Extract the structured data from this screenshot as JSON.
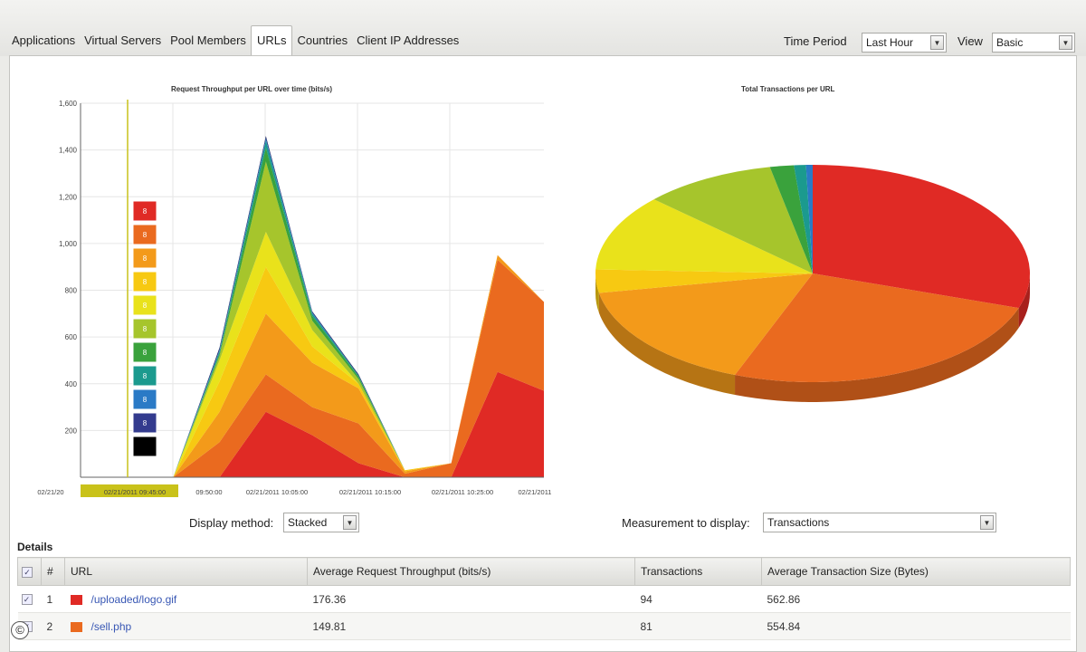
{
  "tabs": [
    "Applications",
    "Virtual Servers",
    "Pool Members",
    "URLs",
    "Countries",
    "Client IP Addresses"
  ],
  "active_tab": 3,
  "toolbar": {
    "time_period_label": "Time Period",
    "time_period_value": "Last Hour",
    "view_label": "View",
    "view_value": "Basic"
  },
  "charts": {
    "left_title": "Request Throughput per URL over time (bits/s)",
    "right_title": "Total Transactions per URL"
  },
  "controls": {
    "display_method_label": "Display method",
    "display_method_value": "Stacked",
    "measurement_label": "Measurement to display",
    "measurement_value": "Transactions"
  },
  "details_label": "Details",
  "table": {
    "headers": [
      "#",
      "URL",
      "Average Request Throughput (bits/s)",
      "Transactions",
      "Average Transaction Size (Bytes)"
    ],
    "rows": [
      {
        "num": "1",
        "color": "#e02a25",
        "url": "/uploaded/logo.gif",
        "throughput": "176.36",
        "transactions": "94",
        "size": "562.86"
      },
      {
        "num": "2",
        "color": "#ea6a1f",
        "url": "/sell.php",
        "throughput": "149.81",
        "transactions": "81",
        "size": "554.84"
      }
    ]
  },
  "legend_labels": [
    "8",
    "8",
    "8",
    "8",
    "8",
    "8",
    "8",
    "8",
    "8",
    "8"
  ],
  "legend_colors": [
    "#e02a25",
    "#ea6a1f",
    "#f39a1a",
    "#f7c912",
    "#e9e21b",
    "#a6c52c",
    "#3aa23c",
    "#1b9a8e",
    "#2a7ac6",
    "#333b8e",
    "#000000"
  ],
  "copyright_symbol": "©",
  "chart_data": [
    {
      "type": "area",
      "title": "Request Throughput per URL over time (bits/s)",
      "stacked": true,
      "ylim": [
        0,
        1600
      ],
      "yticks": [
        "1,600",
        "1,400",
        "1,200",
        "1,000",
        "800",
        "600",
        "400",
        "200"
      ],
      "xtick_labels": [
        "02/21/20",
        "02/21/2011 09:45:00",
        "09:50:00",
        "02/21/2011 10:05:00",
        "02/21/2011 10:15:00",
        "02/21/2011 10:25:00",
        "02/21/2011"
      ],
      "x": [
        0,
        1,
        2,
        3,
        4,
        5,
        6,
        7,
        8,
        9,
        10
      ],
      "series": [
        {
          "color": "#e02a25",
          "values": [
            0,
            0,
            0,
            0,
            280,
            180,
            60,
            0,
            0,
            450,
            370
          ]
        },
        {
          "color": "#ea6a1f",
          "values": [
            0,
            0,
            0,
            150,
            160,
            120,
            170,
            15,
            60,
            480,
            380
          ]
        },
        {
          "color": "#f39a1a",
          "values": [
            0,
            0,
            0,
            130,
            260,
            190,
            150,
            10,
            0,
            20,
            0
          ]
        },
        {
          "color": "#f7c912",
          "values": [
            0,
            0,
            0,
            130,
            200,
            70,
            20,
            5,
            0,
            0,
            0
          ]
        },
        {
          "color": "#e9e21b",
          "values": [
            0,
            0,
            0,
            90,
            150,
            70,
            0,
            0,
            0,
            0,
            0
          ]
        },
        {
          "color": "#a6c52c",
          "values": [
            0,
            0,
            0,
            20,
            300,
            40,
            20,
            0,
            0,
            0,
            0
          ]
        },
        {
          "color": "#3aa23c",
          "values": [
            0,
            0,
            0,
            10,
            60,
            20,
            10,
            0,
            0,
            0,
            0
          ]
        },
        {
          "color": "#1b9a8e",
          "values": [
            0,
            0,
            0,
            10,
            30,
            10,
            5,
            0,
            0,
            0,
            0
          ]
        },
        {
          "color": "#2a7ac6",
          "values": [
            0,
            0,
            0,
            5,
            10,
            5,
            0,
            0,
            0,
            0,
            0
          ]
        },
        {
          "color": "#1d2a6a",
          "values": [
            0,
            0,
            0,
            10,
            10,
            5,
            5,
            0,
            0,
            0,
            0
          ]
        }
      ]
    },
    {
      "type": "pie",
      "title": "Total Transactions per URL",
      "values": [
        30.5,
        26.0,
        16.5,
        3.5,
        11.5,
        10.0,
        1.8,
        0.9,
        0.5
      ],
      "colors": [
        "#e02a25",
        "#ea6a1f",
        "#f39a1a",
        "#f7c912",
        "#e9e21b",
        "#a6c52c",
        "#3aa23c",
        "#1b9a8e",
        "#2a7ac6"
      ]
    }
  ]
}
